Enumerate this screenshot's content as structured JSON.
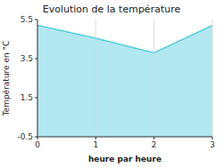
{
  "chart_data": {
    "type": "area",
    "title": "Evolution de la température",
    "x_label": "heure par heure",
    "y_label": "Température en °C",
    "x": [
      0,
      1,
      2,
      3
    ],
    "values": [
      5.2,
      4.55,
      3.8,
      5.2
    ],
    "xlim": [
      0,
      3
    ],
    "ylim": [
      -0.5,
      5.5
    ],
    "xticks": [
      0,
      1,
      2,
      3
    ],
    "yticks": [
      -0.5,
      1.5,
      3.5,
      5.5
    ],
    "color": "#55ccdd",
    "grid": "x"
  }
}
